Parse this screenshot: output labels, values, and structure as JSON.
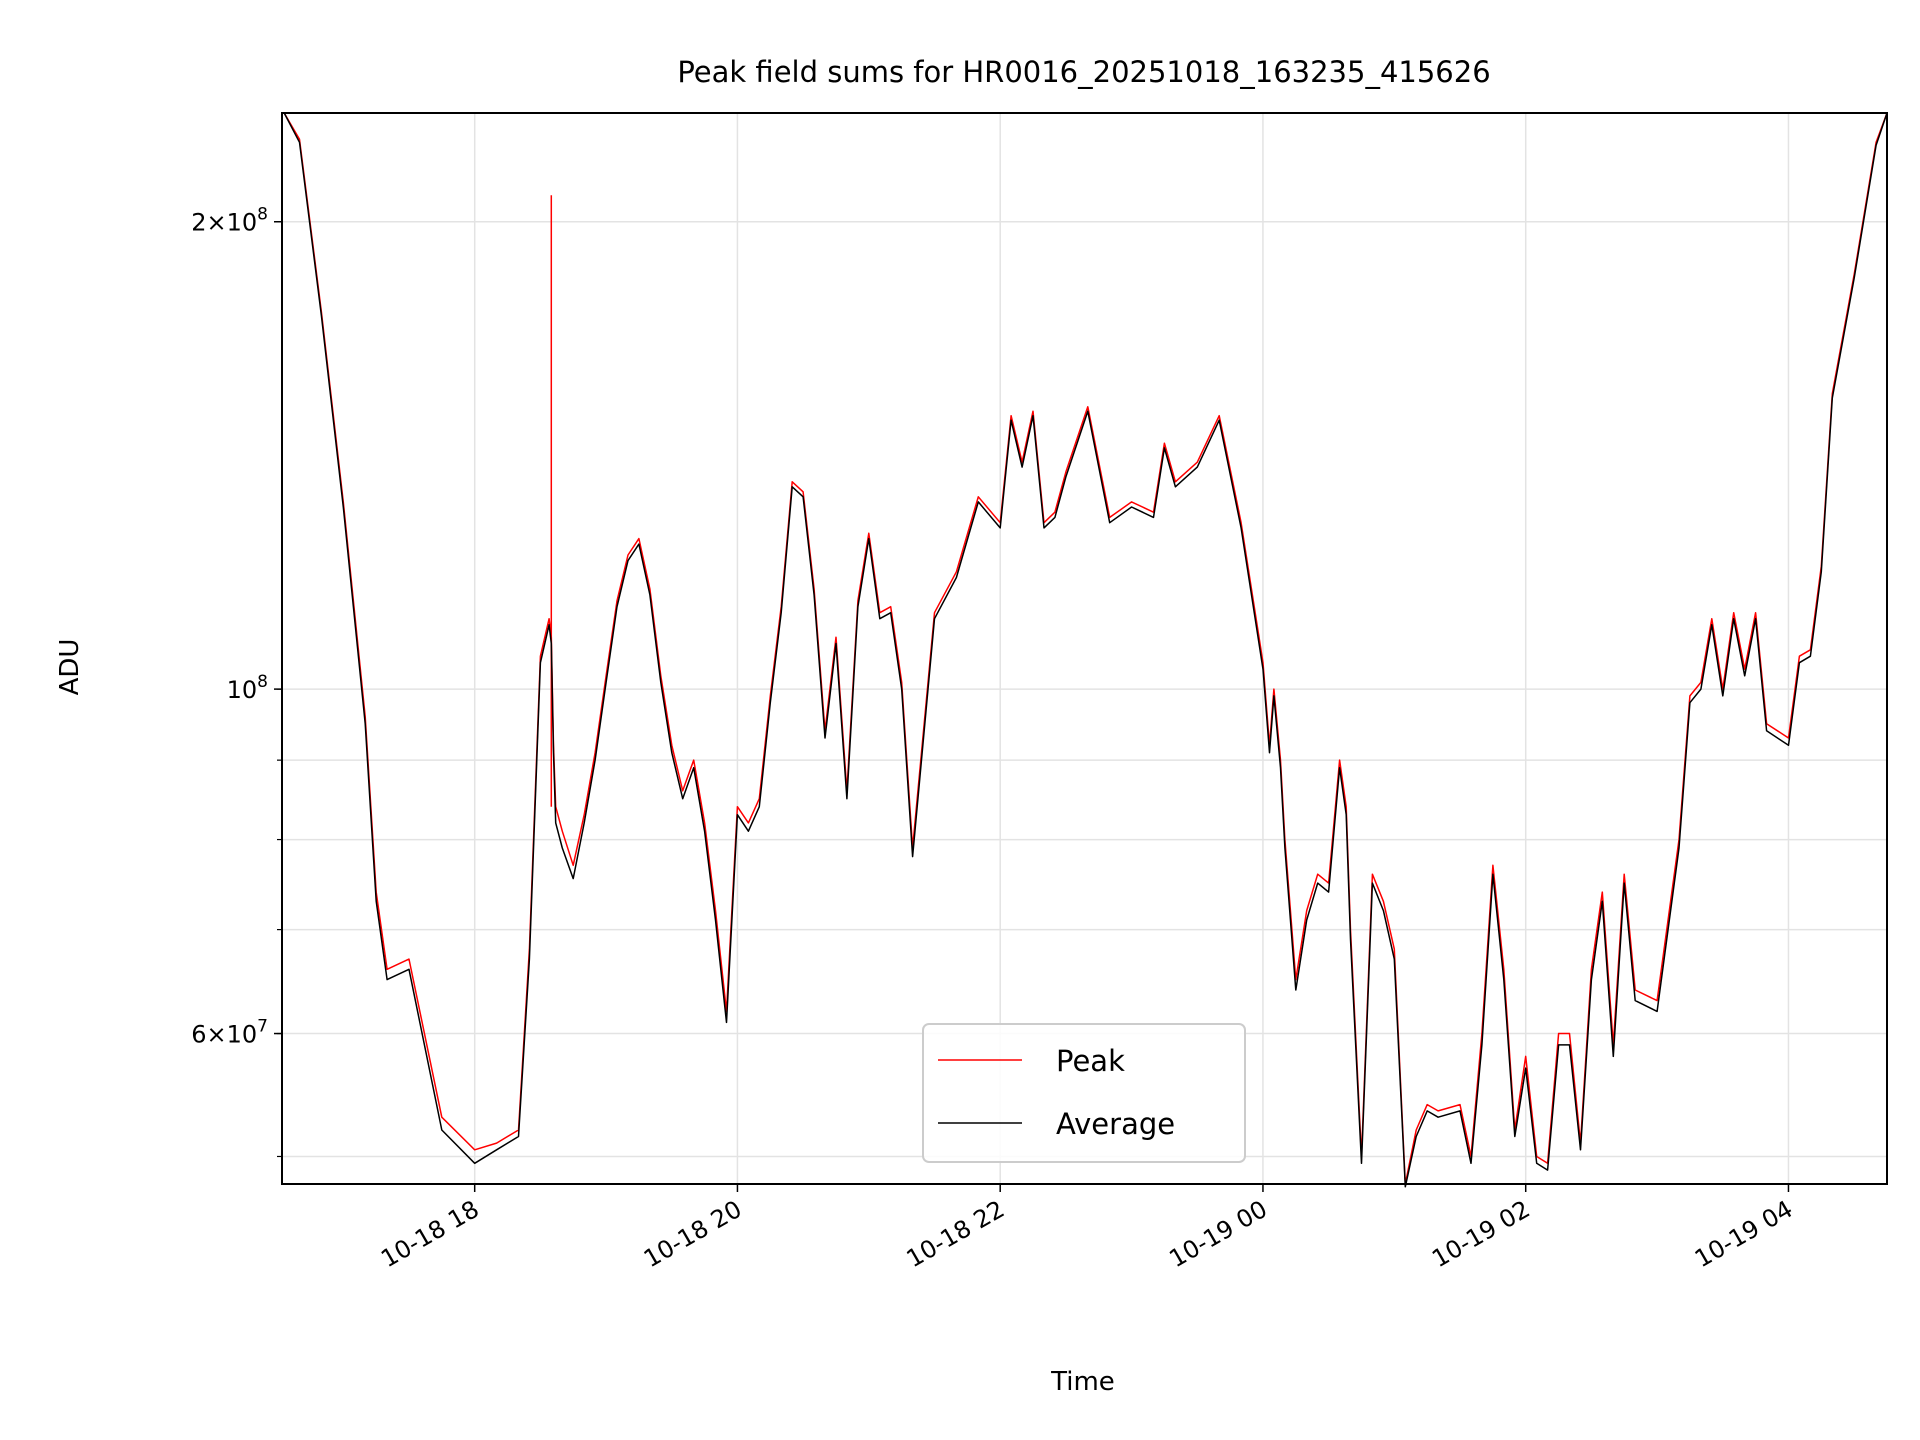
{
  "chart_data": {
    "type": "line",
    "title": "Peak field sums for HR0016_20251018_163235_415626",
    "xlabel": "Time",
    "ylabel": "ADU",
    "yscale": "log",
    "grid": true,
    "legend_position": "bottom-center",
    "x_range": [
      "2025-10-18 16:32",
      "2025-10-19 04:45"
    ],
    "y_range": [
      48000000,
      235000000
    ],
    "x_tick_labels": [
      "10-18 18",
      "10-18 20",
      "10-18 22",
      "10-19 00",
      "10-19 02",
      "10-19 04"
    ],
    "x_tick_values": [
      "2025-10-18 18:00",
      "2025-10-18 20:00",
      "2025-10-18 22:00",
      "2025-10-19 00:00",
      "2025-10-19 02:00",
      "2025-10-19 04:00"
    ],
    "y_major_ticks": [
      {
        "value": 60000000,
        "mant": "6",
        "exp": "7"
      },
      {
        "value": 100000000,
        "mant": "",
        "exp": "8"
      },
      {
        "value": 200000000,
        "mant": "2",
        "exp": "8"
      }
    ],
    "series": [
      {
        "name": "Peak",
        "color": "#ff0000",
        "x": [
          "2025-10-18 16:33",
          "2025-10-18 16:40",
          "2025-10-18 16:50",
          "2025-10-18 17:00",
          "2025-10-18 17:10",
          "2025-10-18 17:15",
          "2025-10-18 17:20",
          "2025-10-18 17:30",
          "2025-10-18 17:45",
          "2025-10-18 18:00",
          "2025-10-18 18:10",
          "2025-10-18 18:20",
          "2025-10-18 18:25",
          "2025-10-18 18:30",
          "2025-10-18 18:34",
          "2025-10-18 18:35",
          "2025-10-18 18:36",
          "2025-10-18 18:37",
          "2025-10-18 18:40",
          "2025-10-18 18:45",
          "2025-10-18 18:50",
          "2025-10-18 18:55",
          "2025-10-18 19:00",
          "2025-10-18 19:05",
          "2025-10-18 19:10",
          "2025-10-18 19:15",
          "2025-10-18 19:20",
          "2025-10-18 19:25",
          "2025-10-18 19:30",
          "2025-10-18 19:35",
          "2025-10-18 19:40",
          "2025-10-18 19:45",
          "2025-10-18 19:50",
          "2025-10-18 19:55",
          "2025-10-18 20:00",
          "2025-10-18 20:05",
          "2025-10-18 20:10",
          "2025-10-18 20:15",
          "2025-10-18 20:20",
          "2025-10-18 20:25",
          "2025-10-18 20:30",
          "2025-10-18 20:35",
          "2025-10-18 20:40",
          "2025-10-18 20:45",
          "2025-10-18 20:50",
          "2025-10-18 20:55",
          "2025-10-18 21:00",
          "2025-10-18 21:05",
          "2025-10-18 21:10",
          "2025-10-18 21:15",
          "2025-10-18 21:20",
          "2025-10-18 21:30",
          "2025-10-18 21:40",
          "2025-10-18 21:50",
          "2025-10-18 22:00",
          "2025-10-18 22:05",
          "2025-10-18 22:10",
          "2025-10-18 22:15",
          "2025-10-18 22:20",
          "2025-10-18 22:25",
          "2025-10-18 22:30",
          "2025-10-18 22:40",
          "2025-10-18 22:50",
          "2025-10-18 23:00",
          "2025-10-18 23:10",
          "2025-10-18 23:15",
          "2025-10-18 23:20",
          "2025-10-18 23:30",
          "2025-10-18 23:40",
          "2025-10-18 23:50",
          "2025-10-19 00:00",
          "2025-10-19 00:03",
          "2025-10-19 00:05",
          "2025-10-19 00:08",
          "2025-10-19 00:10",
          "2025-10-19 00:15",
          "2025-10-19 00:20",
          "2025-10-19 00:25",
          "2025-10-19 00:30",
          "2025-10-19 00:35",
          "2025-10-19 00:38",
          "2025-10-19 00:40",
          "2025-10-19 00:45",
          "2025-10-19 00:50",
          "2025-10-19 00:55",
          "2025-10-19 01:00",
          "2025-10-19 01:05",
          "2025-10-19 01:10",
          "2025-10-19 01:15",
          "2025-10-19 01:20",
          "2025-10-19 01:30",
          "2025-10-19 01:35",
          "2025-10-19 01:40",
          "2025-10-19 01:45",
          "2025-10-19 01:50",
          "2025-10-19 01:55",
          "2025-10-19 02:00",
          "2025-10-19 02:05",
          "2025-10-19 02:10",
          "2025-10-19 02:15",
          "2025-10-19 02:20",
          "2025-10-19 02:25",
          "2025-10-19 02:30",
          "2025-10-19 02:35",
          "2025-10-19 02:40",
          "2025-10-19 02:45",
          "2025-10-19 02:50",
          "2025-10-19 03:00",
          "2025-10-19 03:10",
          "2025-10-19 03:15",
          "2025-10-19 03:20",
          "2025-10-19 03:25",
          "2025-10-19 03:30",
          "2025-10-19 03:35",
          "2025-10-19 03:40",
          "2025-10-19 03:45",
          "2025-10-19 03:50",
          "2025-10-19 04:00",
          "2025-10-19 04:05",
          "2025-10-19 04:10",
          "2025-10-19 04:15",
          "2025-10-19 04:20",
          "2025-10-19 04:30",
          "2025-10-19 04:40",
          "2025-10-19 04:45"
        ],
        "y": [
          235000000,
          226000000,
          175000000,
          132000000,
          96000000,
          74000000,
          66000000,
          67000000,
          53000000,
          50500000,
          51000000,
          52000000,
          68000000,
          105000000,
          111000000,
          108000000,
          92000000,
          84000000,
          81000000,
          77000000,
          83000000,
          91000000,
          102000000,
          114000000,
          122000000,
          125000000,
          116000000,
          102000000,
          92000000,
          86000000,
          90000000,
          82000000,
          72000000,
          62000000,
          84000000,
          82000000,
          85000000,
          99000000,
          113000000,
          136000000,
          134000000,
          116000000,
          94000000,
          108000000,
          86000000,
          114000000,
          126000000,
          112000000,
          113000000,
          101000000,
          79000000,
          112000000,
          119000000,
          133000000,
          128000000,
          150000000,
          140000000,
          151000000,
          128000000,
          130000000,
          138000000,
          152000000,
          129000000,
          132000000,
          130000000,
          144000000,
          136000000,
          140000000,
          150000000,
          128000000,
          104000000,
          92000000,
          100000000,
          90000000,
          80000000,
          65000000,
          72000000,
          76000000,
          75000000,
          90000000,
          84000000,
          70000000,
          50000000,
          76000000,
          73000000,
          68000000,
          48000000,
          52000000,
          54000000,
          53500000,
          54000000,
          50000000,
          60000000,
          77000000,
          66000000,
          52000000,
          58000000,
          50000000,
          49500000,
          60000000,
          60000000,
          51000000,
          66000000,
          74000000,
          59000000,
          76000000,
          64000000,
          63000000,
          80000000,
          99000000,
          101000000,
          111000000,
          100000000,
          112000000,
          103000000,
          112000000,
          95000000,
          93000000,
          105000000,
          106000000,
          120000000,
          155000000,
          185000000,
          225000000,
          235000000
        ]
      },
      {
        "name": "Average",
        "color": "#000000",
        "x": [
          "2025-10-18 16:33",
          "2025-10-18 16:40",
          "2025-10-18 16:50",
          "2025-10-18 17:00",
          "2025-10-18 17:10",
          "2025-10-18 17:15",
          "2025-10-18 17:20",
          "2025-10-18 17:30",
          "2025-10-18 17:45",
          "2025-10-18 18:00",
          "2025-10-18 18:10",
          "2025-10-18 18:20",
          "2025-10-18 18:25",
          "2025-10-18 18:30",
          "2025-10-18 18:34",
          "2025-10-18 18:35",
          "2025-10-18 18:36",
          "2025-10-18 18:37",
          "2025-10-18 18:40",
          "2025-10-18 18:45",
          "2025-10-18 18:50",
          "2025-10-18 18:55",
          "2025-10-18 19:00",
          "2025-10-18 19:05",
          "2025-10-18 19:10",
          "2025-10-18 19:15",
          "2025-10-18 19:20",
          "2025-10-18 19:25",
          "2025-10-18 19:30",
          "2025-10-18 19:35",
          "2025-10-18 19:40",
          "2025-10-18 19:45",
          "2025-10-18 19:50",
          "2025-10-18 19:55",
          "2025-10-18 20:00",
          "2025-10-18 20:05",
          "2025-10-18 20:10",
          "2025-10-18 20:15",
          "2025-10-18 20:20",
          "2025-10-18 20:25",
          "2025-10-18 20:30",
          "2025-10-18 20:35",
          "2025-10-18 20:40",
          "2025-10-18 20:45",
          "2025-10-18 20:50",
          "2025-10-18 20:55",
          "2025-10-18 21:00",
          "2025-10-18 21:05",
          "2025-10-18 21:10",
          "2025-10-18 21:15",
          "2025-10-18 21:20",
          "2025-10-18 21:30",
          "2025-10-18 21:40",
          "2025-10-18 21:50",
          "2025-10-18 22:00",
          "2025-10-18 22:05",
          "2025-10-18 22:10",
          "2025-10-18 22:15",
          "2025-10-18 22:20",
          "2025-10-18 22:25",
          "2025-10-18 22:30",
          "2025-10-18 22:40",
          "2025-10-18 22:50",
          "2025-10-18 23:00",
          "2025-10-18 23:10",
          "2025-10-18 23:15",
          "2025-10-18 23:20",
          "2025-10-18 23:30",
          "2025-10-18 23:40",
          "2025-10-18 23:50",
          "2025-10-19 00:00",
          "2025-10-19 00:03",
          "2025-10-19 00:05",
          "2025-10-19 00:08",
          "2025-10-19 00:10",
          "2025-10-19 00:15",
          "2025-10-19 00:20",
          "2025-10-19 00:25",
          "2025-10-19 00:30",
          "2025-10-19 00:35",
          "2025-10-19 00:38",
          "2025-10-19 00:40",
          "2025-10-19 00:45",
          "2025-10-19 00:50",
          "2025-10-19 00:55",
          "2025-10-19 01:00",
          "2025-10-19 01:05",
          "2025-10-19 01:10",
          "2025-10-19 01:15",
          "2025-10-19 01:20",
          "2025-10-19 01:30",
          "2025-10-19 01:35",
          "2025-10-19 01:40",
          "2025-10-19 01:45",
          "2025-10-19 01:50",
          "2025-10-19 01:55",
          "2025-10-19 02:00",
          "2025-10-19 02:05",
          "2025-10-19 02:10",
          "2025-10-19 02:15",
          "2025-10-19 02:20",
          "2025-10-19 02:25",
          "2025-10-19 02:30",
          "2025-10-19 02:35",
          "2025-10-19 02:40",
          "2025-10-19 02:45",
          "2025-10-19 02:50",
          "2025-10-19 03:00",
          "2025-10-19 03:10",
          "2025-10-19 03:15",
          "2025-10-19 03:20",
          "2025-10-19 03:25",
          "2025-10-19 03:30",
          "2025-10-19 03:35",
          "2025-10-19 03:40",
          "2025-10-19 03:45",
          "2025-10-19 03:50",
          "2025-10-19 04:00",
          "2025-10-19 04:05",
          "2025-10-19 04:10",
          "2025-10-19 04:15",
          "2025-10-19 04:20",
          "2025-10-19 04:30",
          "2025-10-19 04:40",
          "2025-10-19 04:45"
        ],
        "y": [
          235000000,
          225000000,
          174000000,
          131000000,
          95000000,
          73000000,
          65000000,
          66000000,
          52000000,
          49500000,
          50500000,
          51500000,
          67000000,
          104000000,
          110000000,
          107000000,
          91000000,
          82000000,
          79000000,
          75500000,
          82000000,
          90000000,
          101000000,
          113000000,
          121000000,
          124000000,
          115000000,
          101000000,
          91000000,
          85000000,
          89000000,
          81000000,
          71000000,
          61000000,
          83000000,
          81000000,
          84000000,
          98000000,
          112000000,
          135000000,
          133000000,
          115000000,
          93000000,
          107000000,
          85000000,
          113000000,
          125000000,
          111000000,
          112000000,
          100000000,
          78000000,
          111000000,
          118000000,
          132000000,
          127000000,
          149000000,
          139000000,
          150000000,
          127000000,
          129000000,
          137000000,
          151000000,
          128000000,
          131000000,
          129000000,
          143000000,
          135000000,
          139000000,
          149000000,
          127000000,
          103000000,
          91000000,
          99000000,
          89000000,
          79000000,
          64000000,
          71000000,
          75000000,
          74000000,
          89000000,
          83000000,
          69000000,
          49500000,
          75000000,
          72000000,
          67000000,
          47800000,
          51500000,
          53500000,
          53000000,
          53500000,
          49500000,
          59000000,
          76000000,
          65000000,
          51500000,
          57000000,
          49500000,
          49000000,
          59000000,
          59000000,
          50500000,
          65000000,
          73000000,
          58000000,
          75000000,
          63000000,
          62000000,
          79000000,
          98000000,
          100000000,
          110000000,
          99000000,
          111000000,
          102000000,
          111000000,
          94000000,
          92000000,
          104000000,
          105000000,
          119000000,
          154000000,
          184000000,
          224000000,
          235000000
        ]
      },
      {
        "name": "",
        "color": "#ff0000",
        "note": "spike",
        "x": [
          "2025-10-18 18:35",
          "2025-10-18 18:35"
        ],
        "y": [
          84000000,
          208000000
        ]
      }
    ]
  }
}
